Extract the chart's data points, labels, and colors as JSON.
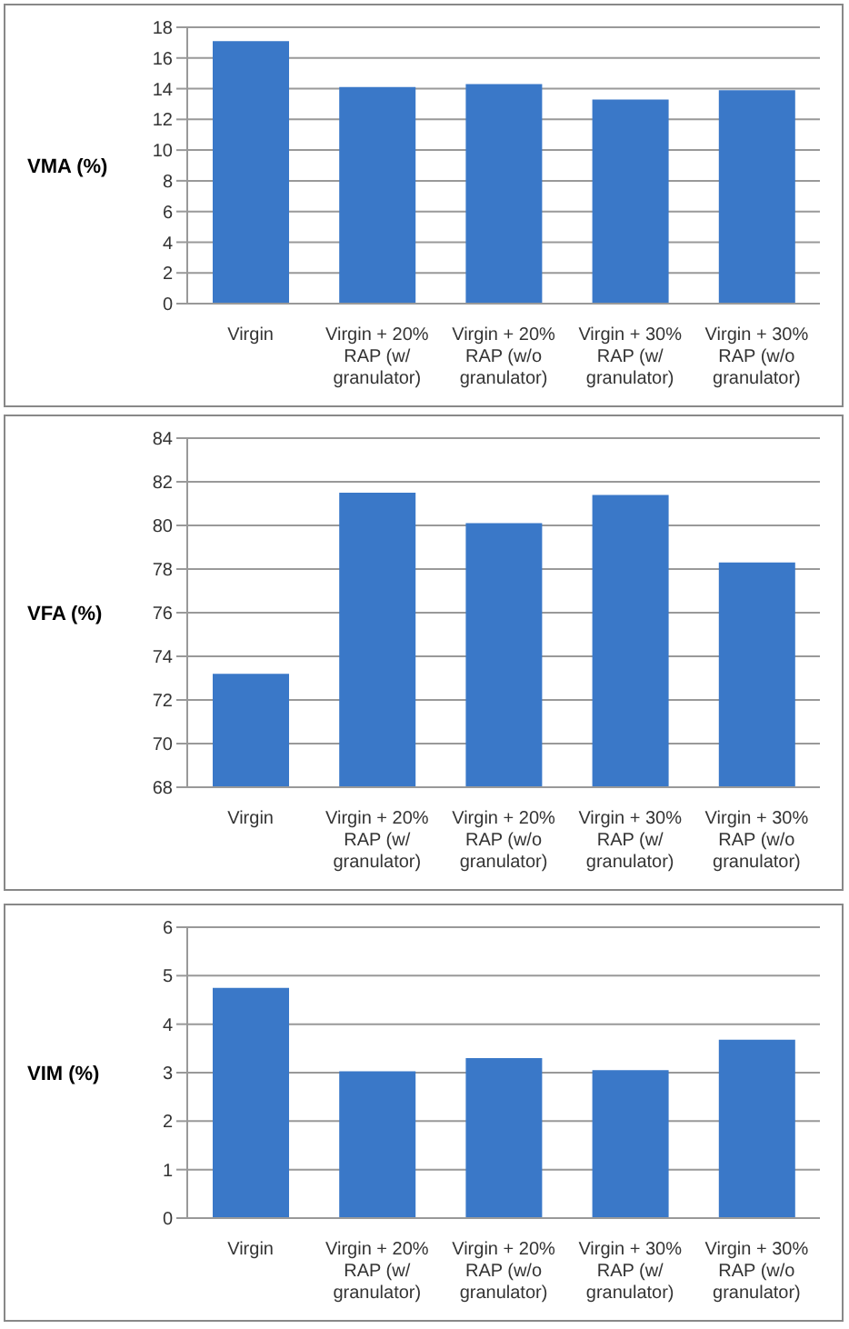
{
  "chart_data": [
    {
      "type": "bar",
      "ylabel": "VMA (%)",
      "categories": [
        "Virgin",
        "Virgin + 20% RAP (w/ granulator)",
        "Virgin + 20% RAP (w/o granulator)",
        "Virgin + 30% RAP (w/ granulator)",
        "Virgin + 30% RAP (w/o granulator)"
      ],
      "values": [
        17.1,
        14.1,
        14.3,
        13.3,
        13.9
      ],
      "color": "#3a78c8",
      "ylim": [
        0,
        18
      ],
      "yticks": [
        0,
        2,
        4,
        6,
        8,
        10,
        12,
        14,
        16,
        18
      ],
      "grid": "y"
    },
    {
      "type": "bar",
      "ylabel": "VFA (%)",
      "categories": [
        "Virgin",
        "Virgin + 20% RAP (w/ granulator)",
        "Virgin + 20% RAP (w/o granulator)",
        "Virgin + 30% RAP (w/ granulator)",
        "Virgin + 30% RAP (w/o granulator)"
      ],
      "values": [
        73.2,
        81.5,
        80.1,
        81.4,
        78.3
      ],
      "color": "#3a78c8",
      "ylim": [
        68,
        84
      ],
      "yticks": [
        68,
        70,
        72,
        74,
        76,
        78,
        80,
        82,
        84
      ],
      "grid": "y"
    },
    {
      "type": "bar",
      "ylabel": "VIM (%)",
      "categories": [
        "Virgin",
        "Virgin + 20% RAP (w/ granulator)",
        "Virgin + 20% RAP (w/o granulator)",
        "Virgin + 30% RAP (w/ granulator)",
        "Virgin + 30% RAP (w/o granulator)"
      ],
      "values": [
        4.75,
        3.03,
        3.3,
        3.05,
        3.68
      ],
      "color": "#3a78c8",
      "ylim": [
        0,
        6
      ],
      "yticks": [
        0,
        1,
        2,
        3,
        4,
        5,
        6
      ],
      "grid": "y"
    }
  ]
}
